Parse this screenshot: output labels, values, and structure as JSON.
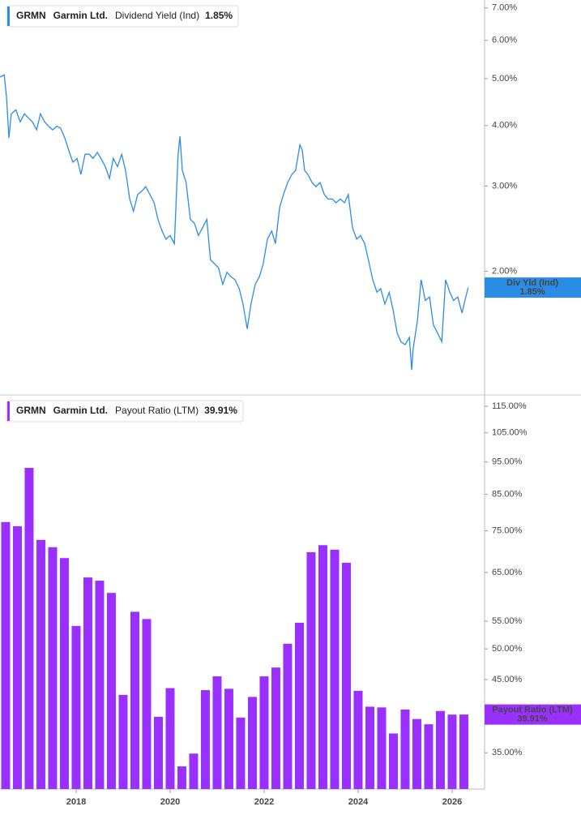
{
  "chart_data": [
    {
      "type": "line",
      "ticker": "GRMN",
      "company": "Garmin Ltd.",
      "log_scale": true,
      "grid": false,
      "xlim": [
        2016.38,
        2026.69
      ],
      "ylim": [
        1.11,
        7.27
      ],
      "yticks": [
        {
          "value": 2,
          "label": "2.00%"
        },
        {
          "value": 3,
          "label": "3.00%"
        },
        {
          "value": 4,
          "label": "4.00%"
        },
        {
          "value": 5,
          "label": "5.00%"
        },
        {
          "value": 6,
          "label": "6.00%"
        },
        {
          "value": 7,
          "label": "7.00%"
        }
      ],
      "x": [
        2016.38,
        2016.47,
        2016.52,
        2016.57,
        2016.62,
        2016.72,
        2016.81,
        2016.9,
        2016.98,
        2017.07,
        2017.16,
        2017.24,
        2017.33,
        2017.41,
        2017.5,
        2017.59,
        2017.67,
        2017.76,
        2017.84,
        2017.93,
        2018.02,
        2018.1,
        2018.19,
        2018.28,
        2018.36,
        2018.45,
        2018.53,
        2018.62,
        2018.71,
        2018.79,
        2018.88,
        2018.97,
        2019.05,
        2019.14,
        2019.22,
        2019.31,
        2019.4,
        2019.48,
        2019.57,
        2019.66,
        2019.74,
        2019.83,
        2019.91,
        2020.0,
        2020.09,
        2020.17,
        2020.21,
        2020.26,
        2020.34,
        2020.43,
        2020.52,
        2020.6,
        2020.69,
        2020.78,
        2020.86,
        2020.95,
        2021.03,
        2021.12,
        2021.21,
        2021.29,
        2021.38,
        2021.47,
        2021.55,
        2021.64,
        2021.72,
        2021.81,
        2021.9,
        2021.98,
        2022.07,
        2022.16,
        2022.24,
        2022.33,
        2022.41,
        2022.5,
        2022.59,
        2022.67,
        2022.76,
        2022.81,
        2022.86,
        2022.93,
        2023.02,
        2023.1,
        2023.19,
        2023.28,
        2023.36,
        2023.45,
        2023.53,
        2023.62,
        2023.71,
        2023.79,
        2023.88,
        2023.97,
        2024.05,
        2024.14,
        2024.22,
        2024.31,
        2024.4,
        2024.48,
        2024.57,
        2024.66,
        2024.74,
        2024.83,
        2024.91,
        2025.0,
        2025.09,
        2025.14,
        2025.17,
        2025.26,
        2025.34,
        2025.43,
        2025.52,
        2025.6,
        2025.69,
        2025.78,
        2025.86,
        2025.95,
        2026.03,
        2026.12,
        2026.21,
        2026.29,
        2026.34
      ],
      "series": [
        {
          "name": "Dividend Yield (Ind)",
          "short_name": "Div Yld (Ind)",
          "color": "#2b8ce6",
          "last_label": "1.85%",
          "values": [
            5.04,
            5.09,
            4.57,
            3.77,
            4.23,
            4.31,
            4.07,
            4.23,
            4.15,
            4.07,
            3.92,
            4.23,
            4.07,
            3.99,
            3.92,
            3.99,
            3.95,
            3.77,
            3.56,
            3.36,
            3.42,
            3.17,
            3.49,
            3.49,
            3.42,
            3.52,
            3.42,
            3.29,
            3.11,
            3.42,
            3.29,
            3.49,
            3.23,
            2.82,
            2.66,
            2.88,
            2.93,
            2.99,
            2.88,
            2.77,
            2.56,
            2.42,
            2.33,
            2.37,
            2.28,
            3.49,
            3.8,
            3.23,
            3.05,
            2.56,
            2.51,
            2.37,
            2.46,
            2.56,
            2.11,
            2.07,
            2.03,
            1.88,
            1.99,
            1.95,
            1.92,
            1.84,
            1.71,
            1.52,
            1.71,
            1.88,
            1.95,
            2.07,
            2.33,
            2.42,
            2.28,
            2.71,
            2.88,
            3.05,
            3.17,
            3.23,
            3.65,
            3.56,
            3.23,
            3.17,
            3.05,
            2.99,
            3.05,
            2.88,
            2.82,
            2.82,
            2.77,
            2.82,
            2.77,
            2.88,
            2.46,
            2.33,
            2.37,
            2.28,
            2.11,
            1.92,
            1.81,
            1.84,
            1.71,
            1.81,
            1.67,
            1.49,
            1.43,
            1.41,
            1.46,
            1.25,
            1.38,
            1.58,
            1.92,
            1.74,
            1.77,
            1.55,
            1.49,
            1.43,
            1.92,
            1.81,
            1.74,
            1.77,
            1.64,
            1.77,
            1.85
          ]
        }
      ]
    },
    {
      "type": "bar",
      "ticker": "GRMN",
      "company": "Garmin Ltd.",
      "log_scale": true,
      "grid": false,
      "xlim": [
        2016.38,
        2026.69
      ],
      "xticks": [
        2018,
        2020,
        2022,
        2024,
        2026
      ],
      "ylim": [
        30.9,
        119.6
      ],
      "yticks": [
        {
          "value": 35,
          "label": "35.00%"
        },
        {
          "value": 45,
          "label": "45.00%"
        },
        {
          "value": 50,
          "label": "50.00%"
        },
        {
          "value": 55,
          "label": "55.00%"
        },
        {
          "value": 65,
          "label": "65.00%"
        },
        {
          "value": 75,
          "label": "75.00%"
        },
        {
          "value": 85,
          "label": "85.00%"
        },
        {
          "value": 95,
          "label": "95.00%"
        },
        {
          "value": 105,
          "label": "105.00%"
        },
        {
          "value": 115,
          "label": "115.00%"
        }
      ],
      "x": [
        2016.5,
        2016.75,
        2017.0,
        2017.25,
        2017.5,
        2017.75,
        2018.0,
        2018.25,
        2018.5,
        2018.75,
        2019.0,
        2019.25,
        2019.5,
        2019.75,
        2020.0,
        2020.25,
        2020.5,
        2020.75,
        2021.0,
        2021.25,
        2021.5,
        2021.75,
        2022.0,
        2022.25,
        2022.5,
        2022.75,
        2023.0,
        2023.25,
        2023.5,
        2023.75,
        2024.0,
        2024.25,
        2024.5,
        2024.75,
        2025.0,
        2025.25,
        2025.5,
        2025.75,
        2026.0,
        2026.25
      ],
      "series": [
        {
          "name": "Payout Ratio (LTM)",
          "short_name": "Payout Ratio (LTM)",
          "color": "#9a30ff",
          "last_label": "39.91%",
          "values": [
            77.3,
            76.2,
            93.1,
            72.7,
            70.9,
            68.3,
            54.1,
            63.9,
            63.2,
            60.6,
            42.7,
            56.8,
            55.4,
            39.6,
            43.7,
            33.4,
            34.9,
            43.4,
            45.5,
            43.6,
            39.5,
            42.4,
            45.5,
            46.9,
            50.9,
            54.7,
            69.7,
            71.4,
            70.3,
            67.2,
            43.3,
            41.0,
            40.9,
            37.4,
            40.6,
            39.3,
            38.6,
            40.4,
            39.9,
            39.91
          ]
        }
      ]
    }
  ]
}
